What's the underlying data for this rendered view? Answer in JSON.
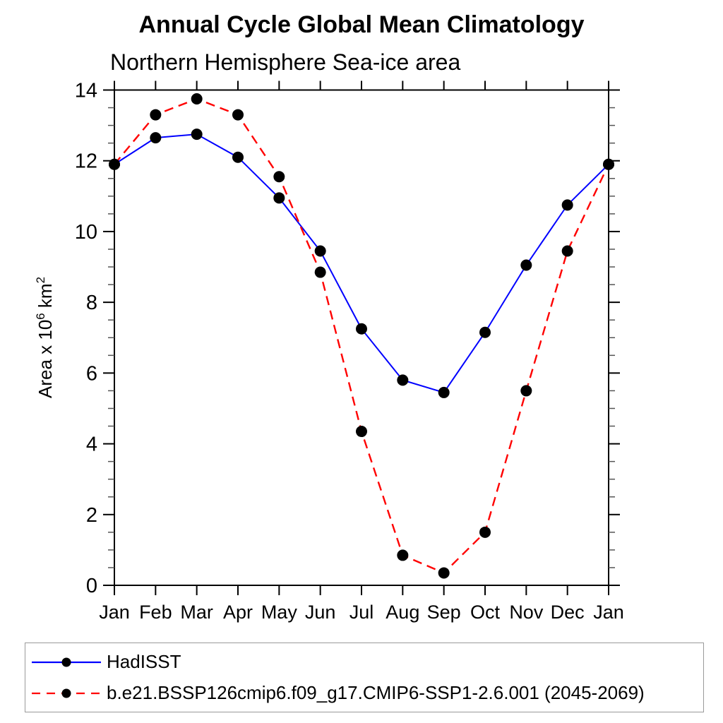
{
  "page": {
    "background": "#ffffff"
  },
  "chart_data": {
    "type": "line",
    "title": "Annual Cycle Global Mean Climatology",
    "subtitle": "Northern Hemisphere Sea-ice area",
    "ylabel": {
      "text": "Area x 10^6 km^2",
      "base1": "Area x 10",
      "sup1": "6",
      "base2": " km",
      "sup2": "2"
    },
    "categories": [
      "Jan",
      "Feb",
      "Mar",
      "Apr",
      "May",
      "Jun",
      "Jul",
      "Aug",
      "Sep",
      "Oct",
      "Nov",
      "Dec",
      "Jan"
    ],
    "ylim": [
      0,
      14
    ],
    "ytick_major": [
      0,
      2,
      4,
      6,
      8,
      10,
      12,
      14
    ],
    "ytick_minor_step": 0.5,
    "grid": false,
    "legend_position": "bottom-left-box",
    "axis_color": "#000000",
    "minor_tick_color": "#555555",
    "marker_color": "#000000",
    "series": [
      {
        "name": "HadISST",
        "color": "#0000ff",
        "style": "solid",
        "marker": "circle",
        "values": [
          11.9,
          12.65,
          12.75,
          12.1,
          10.95,
          9.45,
          7.25,
          5.8,
          5.45,
          7.15,
          9.05,
          10.75,
          11.9
        ]
      },
      {
        "name": "b.e21.BSSP126cmip6.f09_g17.CMIP6-SSP1-2.6.001 (2045-2069)",
        "color": "#ff0000",
        "style": "dashed",
        "marker": "circle",
        "values": [
          11.9,
          13.3,
          13.75,
          13.3,
          11.55,
          8.85,
          4.35,
          0.85,
          0.35,
          1.5,
          5.5,
          9.45,
          11.9
        ]
      }
    ]
  }
}
